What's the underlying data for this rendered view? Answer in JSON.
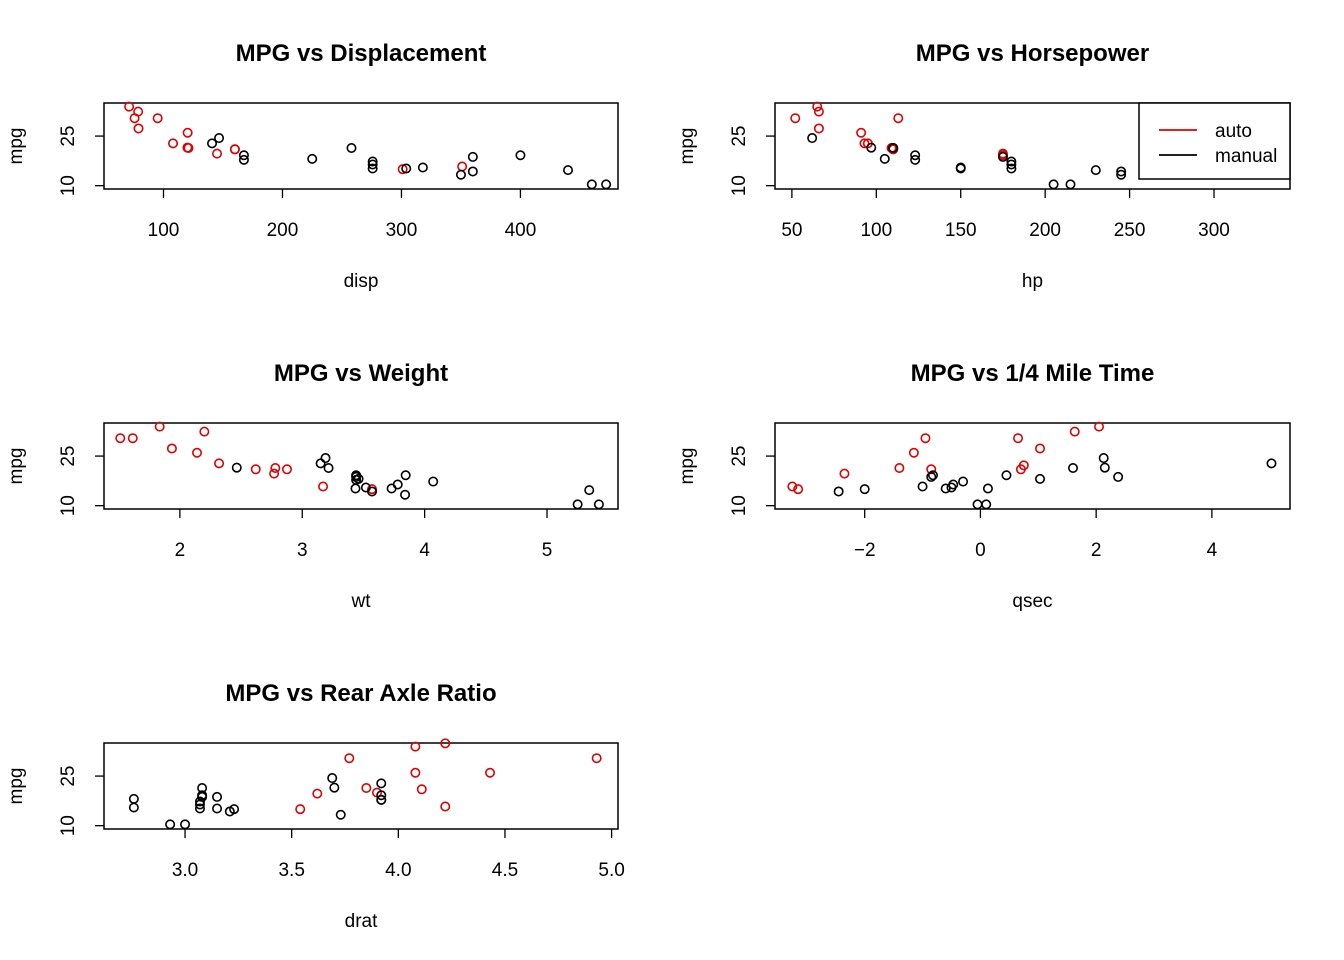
{
  "legend": {
    "entries": [
      {
        "label": "auto",
        "color": "#e00000"
      },
      {
        "label": "manual",
        "color": "#000000"
      }
    ]
  },
  "chart_data": [
    {
      "type": "scatter",
      "title": "MPG vs Displacement",
      "xlabel": "disp",
      "ylabel": "mpg",
      "xticks": [
        100,
        200,
        300,
        400
      ],
      "yticks": [
        10,
        25
      ],
      "xlim": [
        50,
        482
      ],
      "ylim": [
        9,
        35
      ],
      "series": [
        {
          "name": "auto",
          "color": "#e00000",
          "points": [
            [
              71.1,
              33.9
            ],
            [
              75.7,
              30.4
            ],
            [
              78.7,
              32.4
            ],
            [
              79,
              27.3
            ],
            [
              95.1,
              30.4
            ],
            [
              108,
              22.8
            ],
            [
              120.1,
              21.5
            ],
            [
              120.3,
              26
            ],
            [
              121,
              21.4
            ],
            [
              145,
              19.7
            ],
            [
              160,
              21
            ],
            [
              160,
              21
            ],
            [
              301,
              15
            ],
            [
              351,
              15.8
            ]
          ]
        },
        {
          "name": "manual",
          "color": "#000000",
          "points": [
            [
              140.8,
              22.8
            ],
            [
              146.7,
              24.4
            ],
            [
              167.6,
              19.2
            ],
            [
              167.6,
              17.8
            ],
            [
              225,
              18.1
            ],
            [
              258,
              21.4
            ],
            [
              275.8,
              16.4
            ],
            [
              275.8,
              17.3
            ],
            [
              275.8,
              15.2
            ],
            [
              304,
              15.2
            ],
            [
              318,
              15.5
            ],
            [
              350,
              13.3
            ],
            [
              360,
              18.7
            ],
            [
              360,
              14.3
            ],
            [
              400,
              19.2
            ],
            [
              440,
              14.7
            ],
            [
              460,
              10.4
            ],
            [
              472,
              10.4
            ]
          ]
        }
      ]
    },
    {
      "type": "scatter",
      "title": "MPG vs Horsepower",
      "xlabel": "hp",
      "ylabel": "mpg",
      "xticks": [
        50,
        100,
        150,
        200,
        250,
        300
      ],
      "yticks": [
        10,
        25
      ],
      "xlim": [
        40,
        345
      ],
      "ylim": [
        9,
        35
      ],
      "legend_position": "top-right",
      "series": [
        {
          "name": "auto",
          "color": "#e00000",
          "points": [
            [
              52,
              30.4
            ],
            [
              65,
              33.9
            ],
            [
              66,
              32.4
            ],
            [
              66,
              27.3
            ],
            [
              91,
              26
            ],
            [
              93,
              22.8
            ],
            [
              95,
              22.8
            ],
            [
              109,
              21.4
            ],
            [
              110,
              21
            ],
            [
              110,
              21
            ],
            [
              113,
              30.4
            ],
            [
              175,
              19.7
            ],
            [
              175,
              19.2
            ]
          ]
        },
        {
          "name": "manual",
          "color": "#000000",
          "points": [
            [
              62,
              24.4
            ],
            [
              97,
              21.5
            ],
            [
              105,
              18.1
            ],
            [
              110,
              21.4
            ],
            [
              110,
              21.4
            ],
            [
              123,
              19.2
            ],
            [
              123,
              17.8
            ],
            [
              150,
              15.5
            ],
            [
              150,
              15.2
            ],
            [
              175,
              18.7
            ],
            [
              180,
              16.4
            ],
            [
              180,
              17.3
            ],
            [
              180,
              15.2
            ],
            [
              205,
              10.4
            ],
            [
              215,
              10.4
            ],
            [
              230,
              14.7
            ],
            [
              245,
              13.3
            ],
            [
              245,
              14.3
            ]
          ]
        }
      ]
    },
    {
      "type": "scatter",
      "title": "MPG vs Weight",
      "xlabel": "wt",
      "ylabel": "mpg",
      "xticks": [
        2,
        3,
        4,
        5
      ],
      "yticks": [
        10,
        25
      ],
      "xlim": [
        1.38,
        5.58
      ],
      "ylim": [
        9,
        35
      ],
      "series": [
        {
          "name": "auto",
          "color": "#e00000",
          "points": [
            [
              1.513,
              30.4
            ],
            [
              1.615,
              30.4
            ],
            [
              1.835,
              33.9
            ],
            [
              1.935,
              27.3
            ],
            [
              2.14,
              26
            ],
            [
              2.2,
              32.4
            ],
            [
              2.32,
              22.8
            ],
            [
              2.62,
              21
            ],
            [
              2.77,
              19.7
            ],
            [
              2.78,
              21.4
            ],
            [
              2.875,
              21
            ],
            [
              3.17,
              15.8
            ],
            [
              3.57,
              15
            ]
          ]
        },
        {
          "name": "manual",
          "color": "#000000",
          "points": [
            [
              2.465,
              21.5
            ],
            [
              3.15,
              22.8
            ],
            [
              3.19,
              24.4
            ],
            [
              3.215,
              21.4
            ],
            [
              3.435,
              15.2
            ],
            [
              3.44,
              18.7
            ],
            [
              3.44,
              19.2
            ],
            [
              3.44,
              17.8
            ],
            [
              3.46,
              18.1
            ],
            [
              3.52,
              15.5
            ],
            [
              3.57,
              14.3
            ],
            [
              3.73,
              15.2
            ],
            [
              3.78,
              16.4
            ],
            [
              3.84,
              13.3
            ],
            [
              3.845,
              19.2
            ],
            [
              4.07,
              17.3
            ],
            [
              5.25,
              10.4
            ],
            [
              5.345,
              14.7
            ],
            [
              5.424,
              10.4
            ]
          ]
        }
      ]
    },
    {
      "type": "scatter",
      "title": "MPG vs 1/4 Mile Time",
      "xlabel": "qsec",
      "ylabel": "mpg",
      "xticks": [
        -2,
        0,
        2,
        4
      ],
      "yticks": [
        10,
        25
      ],
      "xlim": [
        -3.55,
        5.35
      ],
      "ylim": [
        9,
        35
      ],
      "series": [
        {
          "name": "auto",
          "color": "#e00000",
          "points": [
            [
              -3.25,
              15.8
            ],
            [
              -3.15,
              15
            ],
            [
              -2.35,
              19.7
            ],
            [
              -1.4,
              21.4
            ],
            [
              -1.15,
              26
            ],
            [
              -0.95,
              30.4
            ],
            [
              -0.85,
              21
            ],
            [
              0.65,
              30.4
            ],
            [
              0.7,
              21
            ],
            [
              0.75,
              22.2
            ],
            [
              1.03,
              27.3
            ],
            [
              1.63,
              32.4
            ],
            [
              2.05,
              33.9
            ]
          ]
        },
        {
          "name": "manual",
          "color": "#000000",
          "points": [
            [
              -2.45,
              14.3
            ],
            [
              -2.0,
              15
            ],
            [
              -1.0,
              15.8
            ],
            [
              -0.85,
              18.7
            ],
            [
              -0.82,
              19.2
            ],
            [
              -0.6,
              15.2
            ],
            [
              -0.5,
              15.5
            ],
            [
              -0.47,
              16.4
            ],
            [
              -0.3,
              17.3
            ],
            [
              -0.05,
              10.4
            ],
            [
              0.1,
              10.4
            ],
            [
              0.13,
              15.2
            ],
            [
              0.45,
              19.2
            ],
            [
              1.03,
              18.1
            ],
            [
              1.6,
              21.4
            ],
            [
              2.13,
              24.4
            ],
            [
              2.15,
              21.5
            ],
            [
              2.38,
              18.7
            ],
            [
              5.03,
              22.8
            ]
          ]
        }
      ]
    },
    {
      "type": "scatter",
      "title": "MPG vs Rear Axle Ratio",
      "xlabel": "drat",
      "ylabel": "mpg",
      "xticks": [
        3.0,
        3.5,
        4.0,
        4.5,
        5.0
      ],
      "yticks": [
        10,
        25
      ],
      "xlim": [
        2.62,
        5.03
      ],
      "ylim": [
        9,
        35
      ],
      "series": [
        {
          "name": "auto",
          "color": "#e00000",
          "points": [
            [
              3.54,
              15
            ],
            [
              3.62,
              19.7
            ],
            [
              3.77,
              30.4
            ],
            [
              3.85,
              21.4
            ],
            [
              3.9,
              20
            ],
            [
              3.92,
              17.8
            ],
            [
              4.08,
              33.9
            ],
            [
              4.08,
              26
            ],
            [
              4.11,
              21
            ],
            [
              4.22,
              34.9
            ],
            [
              4.22,
              15.8
            ],
            [
              4.43,
              26
            ],
            [
              4.93,
              30.4
            ]
          ]
        },
        {
          "name": "manual",
          "color": "#000000",
          "points": [
            [
              2.76,
              18.1
            ],
            [
              2.76,
              15.5
            ],
            [
              2.93,
              10.4
            ],
            [
              3.0,
              10.4
            ],
            [
              3.07,
              16.4
            ],
            [
              3.07,
              17.3
            ],
            [
              3.07,
              15.2
            ],
            [
              3.08,
              21.4
            ],
            [
              3.08,
              18.7
            ],
            [
              3.08,
              19.2
            ],
            [
              3.15,
              18.7
            ],
            [
              3.15,
              15.2
            ],
            [
              3.21,
              14.3
            ],
            [
              3.23,
              15
            ],
            [
              3.69,
              24.4
            ],
            [
              3.7,
              21.5
            ],
            [
              3.73,
              13.3
            ],
            [
              3.92,
              22.8
            ],
            [
              3.92,
              19.2
            ],
            [
              3.92,
              17.8
            ]
          ]
        }
      ]
    }
  ]
}
